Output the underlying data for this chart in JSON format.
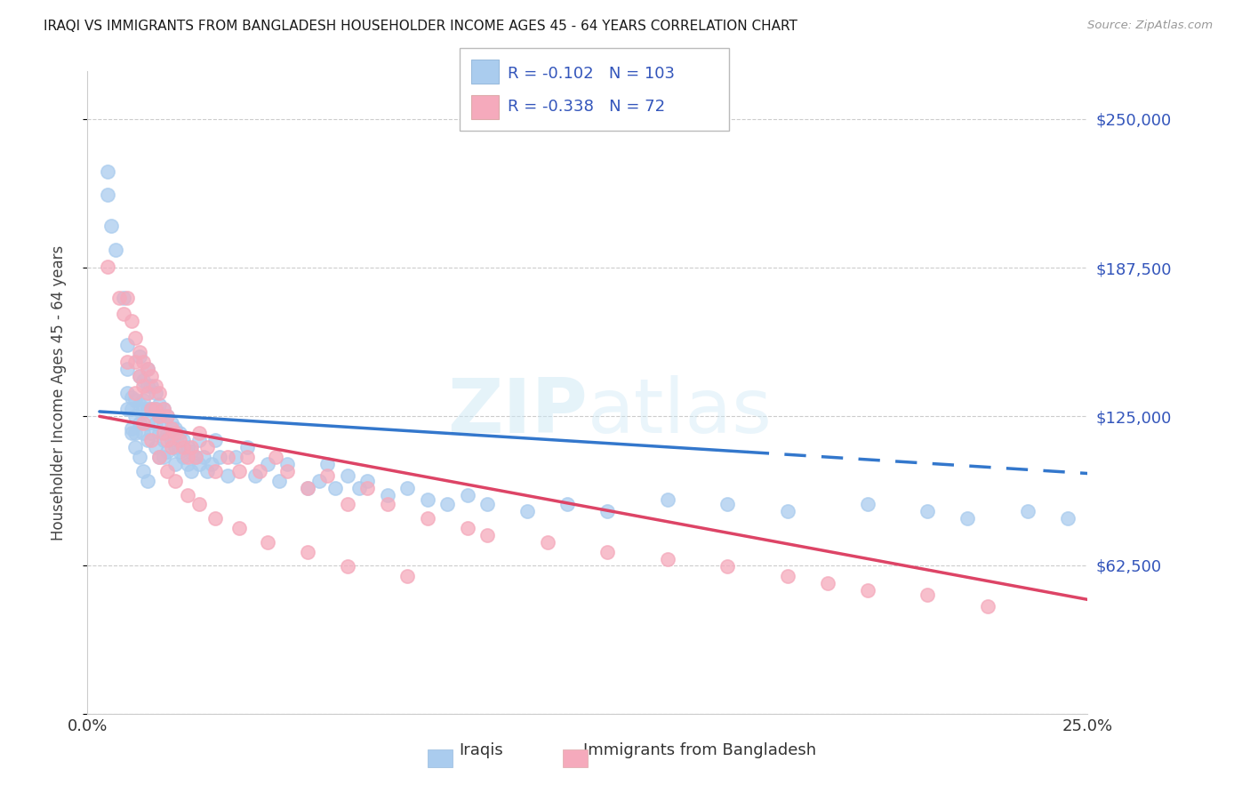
{
  "title": "IRAQI VS IMMIGRANTS FROM BANGLADESH HOUSEHOLDER INCOME AGES 45 - 64 YEARS CORRELATION CHART",
  "source": "Source: ZipAtlas.com",
  "ylabel": "Householder Income Ages 45 - 64 years",
  "xlim": [
    0.0,
    0.25
  ],
  "ylim": [
    0,
    270000
  ],
  "yticks": [
    0,
    62500,
    125000,
    187500,
    250000
  ],
  "ytick_labels": [
    "",
    "$62,500",
    "$125,000",
    "$187,500",
    "$250,000"
  ],
  "xtick_labels": [
    "0.0%",
    "",
    "",
    "",
    "",
    "25.0%"
  ],
  "grid_color": "#cccccc",
  "iraqis_color": "#aaccee",
  "bangladesh_color": "#f5aabc",
  "trend_blue": "#3377cc",
  "trend_pink": "#dd4466",
  "label_color": "#3355bb",
  "R_iraqis": "-0.102",
  "N_iraqis": "103",
  "R_bangladesh": "-0.338",
  "N_bangladesh": "72",
  "trend_blue_x0": 0.003,
  "trend_blue_y0": 127000,
  "trend_blue_x1": 0.165,
  "trend_blue_y1": 110000,
  "trend_blue_x2": 0.25,
  "trend_blue_y2": 101000,
  "trend_pink_x0": 0.003,
  "trend_pink_y0": 125000,
  "trend_pink_x1": 0.25,
  "trend_pink_y1": 48000,
  "iraqis_x": [
    0.005,
    0.005,
    0.006,
    0.007,
    0.009,
    0.01,
    0.01,
    0.01,
    0.011,
    0.011,
    0.011,
    0.012,
    0.012,
    0.012,
    0.013,
    0.013,
    0.013,
    0.013,
    0.014,
    0.014,
    0.014,
    0.014,
    0.015,
    0.015,
    0.015,
    0.015,
    0.015,
    0.016,
    0.016,
    0.016,
    0.017,
    0.017,
    0.017,
    0.017,
    0.018,
    0.018,
    0.018,
    0.018,
    0.019,
    0.019,
    0.019,
    0.019,
    0.02,
    0.02,
    0.02,
    0.021,
    0.021,
    0.022,
    0.022,
    0.022,
    0.023,
    0.023,
    0.024,
    0.024,
    0.025,
    0.025,
    0.026,
    0.026,
    0.027,
    0.028,
    0.028,
    0.029,
    0.03,
    0.031,
    0.032,
    0.033,
    0.035,
    0.037,
    0.04,
    0.042,
    0.045,
    0.048,
    0.05,
    0.055,
    0.058,
    0.06,
    0.062,
    0.065,
    0.068,
    0.07,
    0.075,
    0.08,
    0.085,
    0.09,
    0.095,
    0.1,
    0.11,
    0.12,
    0.13,
    0.145,
    0.16,
    0.175,
    0.195,
    0.21,
    0.22,
    0.235,
    0.245,
    0.01,
    0.011,
    0.012,
    0.013,
    0.014,
    0.015
  ],
  "iraqis_y": [
    228000,
    218000,
    205000,
    195000,
    175000,
    155000,
    145000,
    135000,
    133000,
    128000,
    120000,
    132000,
    125000,
    118000,
    150000,
    142000,
    130000,
    122000,
    140000,
    132000,
    128000,
    118000,
    145000,
    138000,
    128000,
    122000,
    115000,
    138000,
    128000,
    118000,
    135000,
    128000,
    122000,
    112000,
    130000,
    125000,
    118000,
    108000,
    128000,
    122000,
    115000,
    108000,
    125000,
    118000,
    110000,
    122000,
    115000,
    120000,
    112000,
    105000,
    118000,
    110000,
    115000,
    108000,
    112000,
    105000,
    110000,
    102000,
    108000,
    115000,
    105000,
    108000,
    102000,
    105000,
    115000,
    108000,
    100000,
    108000,
    112000,
    100000,
    105000,
    98000,
    105000,
    95000,
    98000,
    105000,
    95000,
    100000,
    95000,
    98000,
    92000,
    95000,
    90000,
    88000,
    92000,
    88000,
    85000,
    88000,
    85000,
    90000,
    88000,
    85000,
    88000,
    85000,
    82000,
    85000,
    82000,
    128000,
    118000,
    112000,
    108000,
    102000,
    98000
  ],
  "bangladesh_x": [
    0.005,
    0.008,
    0.009,
    0.01,
    0.011,
    0.012,
    0.012,
    0.013,
    0.013,
    0.014,
    0.014,
    0.015,
    0.015,
    0.016,
    0.016,
    0.017,
    0.017,
    0.018,
    0.018,
    0.019,
    0.019,
    0.02,
    0.02,
    0.021,
    0.021,
    0.022,
    0.023,
    0.024,
    0.025,
    0.026,
    0.027,
    0.028,
    0.03,
    0.032,
    0.035,
    0.038,
    0.04,
    0.043,
    0.047,
    0.05,
    0.055,
    0.06,
    0.065,
    0.07,
    0.075,
    0.085,
    0.095,
    0.1,
    0.115,
    0.13,
    0.145,
    0.16,
    0.175,
    0.185,
    0.195,
    0.21,
    0.225,
    0.01,
    0.012,
    0.014,
    0.016,
    0.018,
    0.02,
    0.022,
    0.025,
    0.028,
    0.032,
    0.038,
    0.045,
    0.055,
    0.065,
    0.08
  ],
  "bangladesh_y": [
    188000,
    175000,
    168000,
    175000,
    165000,
    158000,
    148000,
    152000,
    142000,
    148000,
    138000,
    145000,
    135000,
    142000,
    128000,
    138000,
    128000,
    135000,
    125000,
    128000,
    118000,
    125000,
    115000,
    120000,
    112000,
    118000,
    115000,
    112000,
    108000,
    112000,
    108000,
    118000,
    112000,
    102000,
    108000,
    102000,
    108000,
    102000,
    108000,
    102000,
    95000,
    100000,
    88000,
    95000,
    88000,
    82000,
    78000,
    75000,
    72000,
    68000,
    65000,
    62000,
    58000,
    55000,
    52000,
    50000,
    45000,
    148000,
    135000,
    122000,
    115000,
    108000,
    102000,
    98000,
    92000,
    88000,
    82000,
    78000,
    72000,
    68000,
    62000,
    58000
  ]
}
